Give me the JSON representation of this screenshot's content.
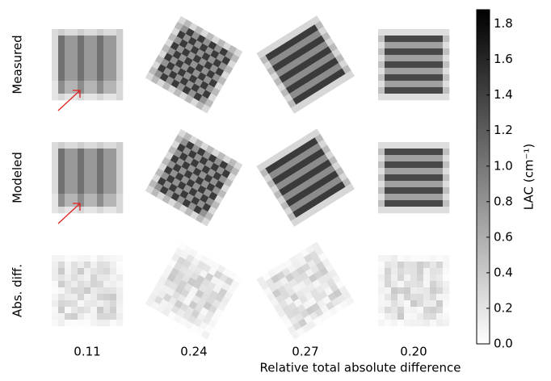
{
  "chart_data": {
    "type": "image-grid",
    "row_labels": [
      "Measured",
      "Modeled",
      "Abs. diff."
    ],
    "column_values": [
      0.11,
      0.24,
      0.27,
      {
        "value": 0.2,
        "label": "0.20"
      }
    ],
    "x_label": "Relative total absolute difference",
    "colorbar": {
      "label": "LAC (cm⁻¹)",
      "ylim": [
        0,
        1.88
      ],
      "yticks": [
        {
          "value": 0,
          "label": "0.0"
        },
        0.2,
        0.4,
        0.6,
        0.8,
        {
          "value": 1,
          "label": "1.0"
        },
        1.2,
        1.4,
        1.6,
        1.8
      ],
      "colors": [
        "#ffffff",
        "#000000"
      ]
    }
  }
}
